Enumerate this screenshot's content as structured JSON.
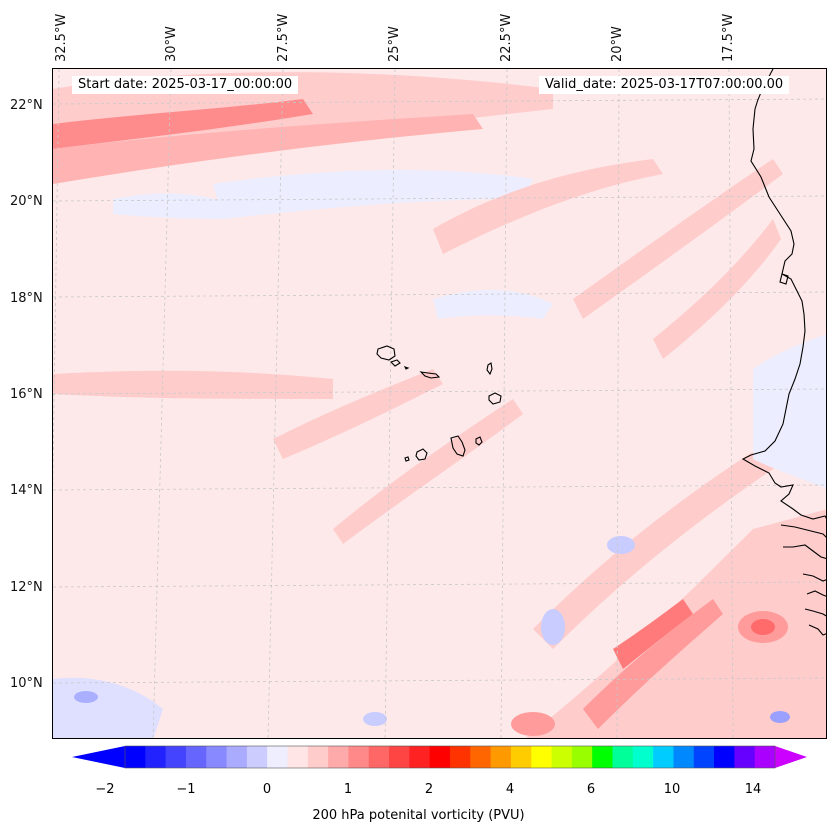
{
  "map": {
    "start_date_label": "Start date: 2025-03-17_00:00:00",
    "valid_date_label": "Valid_date: 2025-03-17T07:00:00.00",
    "longitude_labels": [
      "32.5°W",
      "30°W",
      "27.5°W",
      "25°W",
      "22.5°W",
      "20°W",
      "17.5°W"
    ],
    "latitude_labels": [
      "22°N",
      "20°N",
      "18°N",
      "16°N",
      "14°N",
      "12°N",
      "10°N"
    ],
    "colors": {
      "background_fill": "#fde9ea",
      "coastline": "#000000",
      "gridline": "#c8c8c8"
    }
  },
  "colorbar": {
    "title": "200 hPa potenital vorticity (PVU)",
    "tick_labels": [
      "−2",
      "−1",
      "0",
      "1",
      "2",
      "4",
      "6",
      "10",
      "14"
    ],
    "colors": [
      "#0000ff",
      "#2222ff",
      "#4444ff",
      "#6666ff",
      "#8888ff",
      "#aaaaff",
      "#ccccff",
      "#eeeeff",
      "#ffe5e5",
      "#ffcccc",
      "#ffaaaa",
      "#ff8888",
      "#ff6666",
      "#ff4444",
      "#ff2222",
      "#ff0000",
      "#ff3300",
      "#ff6600",
      "#ff9900",
      "#ffcc00",
      "#ffff00",
      "#ccff00",
      "#99ff00",
      "#00ff00",
      "#00ff99",
      "#00ffcc",
      "#00ccff",
      "#0088ff",
      "#0044ff",
      "#0000ff",
      "#6600ff",
      "#aa00ff"
    ],
    "extend_low_color": "#0000ff",
    "extend_high_color": "#cc00ff"
  }
}
